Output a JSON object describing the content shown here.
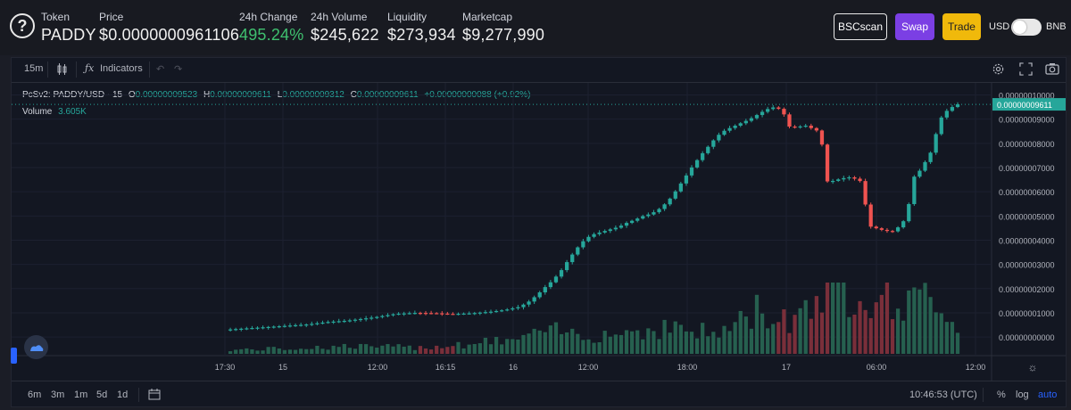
{
  "header": {
    "token_label": "Token",
    "token_value": "PADDY",
    "price_label": "Price",
    "price_value": "$0.0000000961106",
    "change_label": "24h Change",
    "change_value": "495.24%",
    "volume_label": "24h Volume",
    "volume_value": "$245,622",
    "liquidity_label": "Liquidity",
    "liquidity_value": "$273,934",
    "marketcap_label": "Marketcap",
    "marketcap_value": "$9,277,990",
    "bscscan_label": "BSCscan",
    "swap_label": "Swap",
    "trade_label": "Trade",
    "usd_label": "USD",
    "bnb_label": "BNB"
  },
  "toolbar": {
    "interval": "15m",
    "indicators_label": "Indicators"
  },
  "legend": {
    "symbol": "PcSv2: PADDY/USD · 15",
    "o_label": "O",
    "o_value": "0.00000009523",
    "h_label": "H",
    "h_value": "0.00000009611",
    "l_label": "L",
    "l_value": "0.00000009312",
    "c_label": "C",
    "c_value": "0.00000009611",
    "change": "+0.00000000088 (+0.92%)",
    "volume_label": "Volume",
    "volume_value": "3.605K"
  },
  "bottombar": {
    "ranges": [
      "6m",
      "3m",
      "1m",
      "5d",
      "1d"
    ],
    "time": "10:46:53 (UTC)",
    "percent": "%",
    "log": "log",
    "auto": "auto"
  },
  "colors": {
    "up": "#26a69a",
    "down": "#ef5350",
    "up_volume": "#26604f",
    "down_volume": "#7a2f3a",
    "swap": "#7b3fe4",
    "trade": "#f0b90b",
    "change_green": "#3fc06f"
  },
  "chart_data": {
    "type": "candlestick",
    "symbol": "PcSv2: PADDY/USD",
    "interval": "15",
    "y_axis_ticks": [
      "0.00000010000",
      "0.00000009000",
      "0.00000008000",
      "0.00000007000",
      "0.00000006000",
      "0.00000005000",
      "0.00000004000",
      "0.00000003000",
      "0.00000002000",
      "0.00000001000",
      "0.00000000000"
    ],
    "ylim_e8": [
      -0.4,
      10.35
    ],
    "last_price_label": "0.00000009611",
    "last_price_e8": 9.611,
    "x_axis_ticks": [
      "17:30",
      "15",
      "12:00",
      "16:15",
      "16",
      "12:00",
      "18:00",
      "17",
      "06:00",
      "12:00"
    ],
    "unit_note": "prices in units of 1e-8 USD",
    "close_path_e8": [
      [
        0,
        0.3
      ],
      [
        60,
        0.52
      ],
      [
        75,
        0.62
      ],
      [
        90,
        0.68
      ],
      [
        110,
        0.82
      ],
      [
        125,
        0.96
      ],
      [
        140,
        1.0
      ],
      [
        155,
        0.98
      ],
      [
        165,
        0.95
      ],
      [
        180,
        0.98
      ],
      [
        195,
        1.05
      ],
      [
        205,
        1.12
      ],
      [
        215,
        1.24
      ],
      [
        222,
        1.45
      ],
      [
        228,
        1.72
      ],
      [
        234,
        2.05
      ],
      [
        240,
        2.35
      ],
      [
        246,
        2.75
      ],
      [
        252,
        3.25
      ],
      [
        258,
        3.7
      ],
      [
        264,
        4.08
      ],
      [
        270,
        4.25
      ],
      [
        276,
        4.35
      ],
      [
        282,
        4.45
      ],
      [
        288,
        4.55
      ],
      [
        294,
        4.72
      ],
      [
        300,
        4.85
      ],
      [
        306,
        5.0
      ],
      [
        312,
        5.1
      ],
      [
        318,
        5.3
      ],
      [
        324,
        5.6
      ],
      [
        330,
        6.05
      ],
      [
        336,
        6.55
      ],
      [
        342,
        7.05
      ],
      [
        348,
        7.5
      ],
      [
        354,
        7.9
      ],
      [
        360,
        8.3
      ],
      [
        366,
        8.55
      ],
      [
        372,
        8.7
      ],
      [
        378,
        8.85
      ],
      [
        384,
        9.0
      ],
      [
        390,
        9.2
      ],
      [
        396,
        9.4
      ],
      [
        402,
        9.5
      ],
      [
        408,
        9.35
      ],
      [
        412,
        8.7
      ],
      [
        418,
        8.65
      ],
      [
        424,
        8.75
      ],
      [
        430,
        8.6
      ],
      [
        436,
        8.45
      ],
      [
        439,
        6.42
      ],
      [
        445,
        6.45
      ],
      [
        451,
        6.55
      ],
      [
        457,
        6.6
      ],
      [
        463,
        6.5
      ],
      [
        467,
        6.35
      ],
      [
        470,
        4.6
      ],
      [
        476,
        4.5
      ],
      [
        482,
        4.4
      ],
      [
        488,
        4.35
      ],
      [
        494,
        4.6
      ],
      [
        499,
        5.0
      ],
      [
        503,
        6.55
      ],
      [
        508,
        6.85
      ],
      [
        513,
        7.3
      ],
      [
        518,
        7.8
      ],
      [
        522,
        8.9
      ],
      [
        527,
        9.3
      ],
      [
        532,
        9.5
      ],
      [
        536,
        9.611
      ]
    ],
    "volume_profile": [
      [
        0,
        0.6
      ],
      [
        40,
        0.8
      ],
      [
        90,
        1.2
      ],
      [
        140,
        1.0
      ],
      [
        180,
        1.6
      ],
      [
        210,
        2.2
      ],
      [
        240,
        3.5
      ],
      [
        270,
        3.0
      ],
      [
        300,
        3.6
      ],
      [
        330,
        4.2
      ],
      [
        360,
        3.0
      ],
      [
        390,
        6.8
      ],
      [
        412,
        5.2
      ],
      [
        436,
        10.0
      ],
      [
        470,
        10.0
      ],
      [
        503,
        7.5
      ],
      [
        520,
        10.0
      ],
      [
        536,
        3.605
      ]
    ]
  }
}
